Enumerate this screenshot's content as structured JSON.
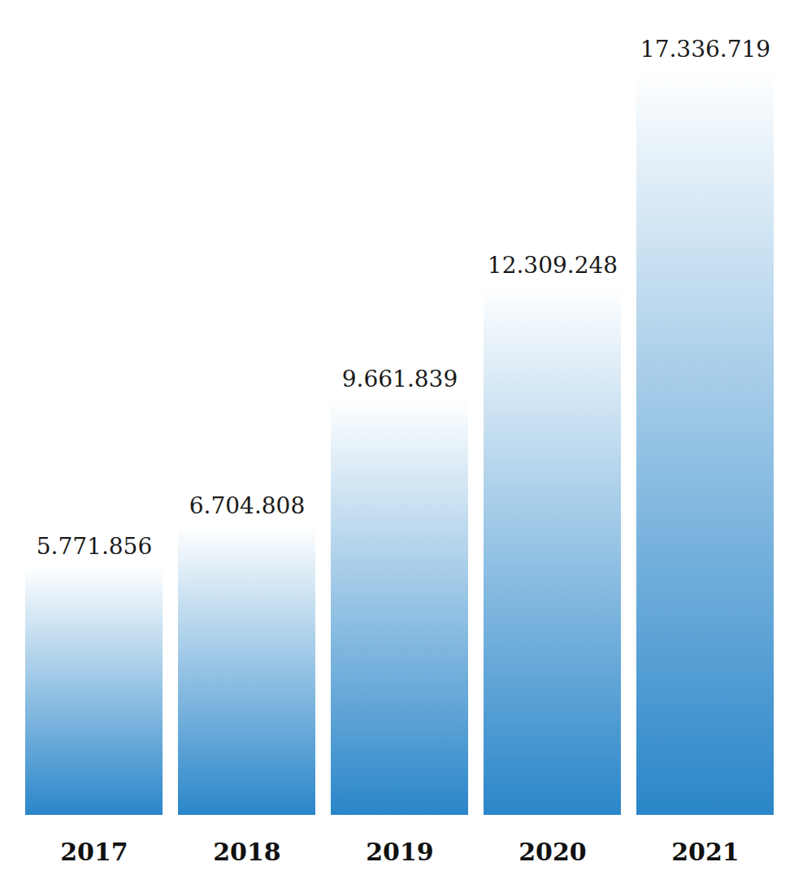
{
  "chart_data": {
    "type": "bar",
    "categories": [
      "2017",
      "2018",
      "2019",
      "2020",
      "2021"
    ],
    "values": [
      5771856,
      6704808,
      9661839,
      12309248,
      17336719
    ],
    "value_labels": [
      "5.771.856",
      "6.704.808",
      "9.661.839",
      "12.309.248",
      "17.336.719"
    ],
    "color": "#2a86c9",
    "data_labels": true,
    "tick_labels": "x",
    "grid": false
  }
}
